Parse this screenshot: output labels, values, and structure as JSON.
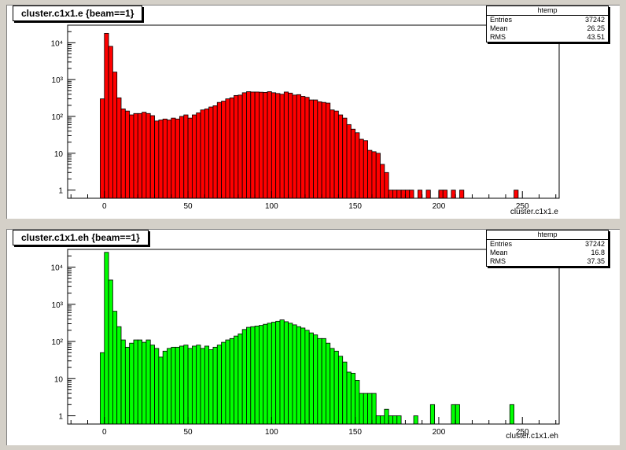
{
  "charts": [
    {
      "id": "e",
      "title": "cluster.c1x1.e {beam==1}",
      "stats": {
        "name": "htemp",
        "entries_label": "Entries",
        "entries": "37242",
        "mean_label": "Mean",
        "mean": "26.25",
        "rms_label": "RMS",
        "rms": "43.51"
      },
      "color": "#ff0000"
    },
    {
      "id": "eh",
      "title": "cluster.c1x1.eh {beam==1}",
      "stats": {
        "name": "htemp",
        "entries_label": "Entries",
        "entries": "37242",
        "mean_label": "Mean",
        "mean": "16.8",
        "rms_label": "RMS",
        "rms": "37.35"
      },
      "color": "#00ff00"
    }
  ],
  "chart_data": [
    {
      "type": "histogram",
      "title": "cluster.c1x1.e {beam==1}",
      "xlabel": "cluster.c1x1.e",
      "ylabel": "",
      "xlim": [
        -22,
        272
      ],
      "ylim": [
        0.6,
        30000
      ],
      "y_scale": "log",
      "bin_width": 2.5,
      "x_ticks": [
        0,
        50,
        100,
        150,
        200,
        250
      ],
      "y_ticks": [
        {
          "v": 1,
          "label": "1"
        },
        {
          "v": 10,
          "label": "10"
        },
        {
          "v": 100,
          "label": "10²"
        },
        {
          "v": 1000,
          "label": "10³"
        },
        {
          "v": 10000,
          "label": "10⁴"
        }
      ],
      "fill": "#ff0000",
      "bins": [
        [
          -2.5,
          300
        ],
        [
          0,
          18000
        ],
        [
          2.5,
          8000
        ],
        [
          5,
          1600
        ],
        [
          7.5,
          320
        ],
        [
          10,
          160
        ],
        [
          12.5,
          140
        ],
        [
          15,
          110
        ],
        [
          17.5,
          120
        ],
        [
          20,
          120
        ],
        [
          22.5,
          130
        ],
        [
          25,
          120
        ],
        [
          27.5,
          105
        ],
        [
          30,
          75
        ],
        [
          32.5,
          80
        ],
        [
          35,
          85
        ],
        [
          37.5,
          80
        ],
        [
          40,
          90
        ],
        [
          42.5,
          85
        ],
        [
          45,
          100
        ],
        [
          47.5,
          110
        ],
        [
          50,
          90
        ],
        [
          52.5,
          110
        ],
        [
          55,
          125
        ],
        [
          57.5,
          150
        ],
        [
          60,
          160
        ],
        [
          62.5,
          180
        ],
        [
          65,
          195
        ],
        [
          67.5,
          240
        ],
        [
          70,
          260
        ],
        [
          72.5,
          300
        ],
        [
          75,
          320
        ],
        [
          77.5,
          370
        ],
        [
          80,
          380
        ],
        [
          82.5,
          440
        ],
        [
          85,
          470
        ],
        [
          87.5,
          460
        ],
        [
          90,
          460
        ],
        [
          92.5,
          455
        ],
        [
          95,
          450
        ],
        [
          97.5,
          470
        ],
        [
          100,
          440
        ],
        [
          102.5,
          420
        ],
        [
          105,
          400
        ],
        [
          107.5,
          460
        ],
        [
          110,
          430
        ],
        [
          112.5,
          380
        ],
        [
          115,
          390
        ],
        [
          117.5,
          350
        ],
        [
          120,
          330
        ],
        [
          122.5,
          280
        ],
        [
          125,
          280
        ],
        [
          127.5,
          250
        ],
        [
          130,
          240
        ],
        [
          132.5,
          230
        ],
        [
          135,
          150
        ],
        [
          137.5,
          140
        ],
        [
          140,
          110
        ],
        [
          142.5,
          90
        ],
        [
          145,
          60
        ],
        [
          147.5,
          45
        ],
        [
          150,
          36
        ],
        [
          152.5,
          24
        ],
        [
          155,
          22
        ],
        [
          157.5,
          12
        ],
        [
          160,
          11
        ],
        [
          162.5,
          10
        ],
        [
          165,
          5
        ],
        [
          167.5,
          3
        ],
        [
          170,
          1
        ],
        [
          172.5,
          1
        ],
        [
          175,
          1
        ],
        [
          177.5,
          1
        ],
        [
          180,
          1
        ],
        [
          182.5,
          1
        ],
        [
          187.5,
          1
        ],
        [
          192.5,
          1
        ],
        [
          200,
          1
        ],
        [
          202.5,
          1
        ],
        [
          207.5,
          1
        ],
        [
          212.5,
          1
        ],
        [
          245,
          1
        ]
      ]
    },
    {
      "type": "histogram",
      "title": "cluster.c1x1.eh {beam==1}",
      "xlabel": "cluster.c1x1.eh",
      "ylabel": "",
      "xlim": [
        -22,
        272
      ],
      "ylim": [
        0.6,
        30000
      ],
      "y_scale": "log",
      "bin_width": 2.5,
      "x_ticks": [
        0,
        50,
        100,
        150,
        200,
        250
      ],
      "y_ticks": [
        {
          "v": 1,
          "label": "1"
        },
        {
          "v": 10,
          "label": "10"
        },
        {
          "v": 100,
          "label": "10²"
        },
        {
          "v": 1000,
          "label": "10³"
        },
        {
          "v": 10000,
          "label": "10⁴"
        }
      ],
      "fill": "#00ff00",
      "bins": [
        [
          -2.5,
          50
        ],
        [
          0,
          25000
        ],
        [
          2.5,
          4500
        ],
        [
          5,
          650
        ],
        [
          7.5,
          250
        ],
        [
          10,
          110
        ],
        [
          12.5,
          70
        ],
        [
          15,
          90
        ],
        [
          17.5,
          110
        ],
        [
          20,
          110
        ],
        [
          22.5,
          95
        ],
        [
          25,
          110
        ],
        [
          27.5,
          80
        ],
        [
          30,
          65
        ],
        [
          32.5,
          38
        ],
        [
          35,
          55
        ],
        [
          37.5,
          65
        ],
        [
          40,
          70
        ],
        [
          42.5,
          70
        ],
        [
          45,
          75
        ],
        [
          47.5,
          80
        ],
        [
          50,
          65
        ],
        [
          52.5,
          75
        ],
        [
          55,
          80
        ],
        [
          57.5,
          65
        ],
        [
          60,
          75
        ],
        [
          62.5,
          60
        ],
        [
          65,
          70
        ],
        [
          67.5,
          80
        ],
        [
          70,
          95
        ],
        [
          72.5,
          110
        ],
        [
          75,
          120
        ],
        [
          77.5,
          140
        ],
        [
          80,
          160
        ],
        [
          82.5,
          210
        ],
        [
          85,
          240
        ],
        [
          87.5,
          250
        ],
        [
          90,
          260
        ],
        [
          92.5,
          270
        ],
        [
          95,
          290
        ],
        [
          97.5,
          310
        ],
        [
          100,
          330
        ],
        [
          102.5,
          350
        ],
        [
          105,
          380
        ],
        [
          107.5,
          340
        ],
        [
          110,
          310
        ],
        [
          112.5,
          280
        ],
        [
          115,
          250
        ],
        [
          117.5,
          230
        ],
        [
          120,
          200
        ],
        [
          122.5,
          170
        ],
        [
          125,
          150
        ],
        [
          127.5,
          120
        ],
        [
          130,
          120
        ],
        [
          132.5,
          90
        ],
        [
          135,
          65
        ],
        [
          137.5,
          55
        ],
        [
          140,
          40
        ],
        [
          142.5,
          28
        ],
        [
          145,
          15
        ],
        [
          147.5,
          14
        ],
        [
          150,
          9
        ],
        [
          152.5,
          4
        ],
        [
          155,
          4
        ],
        [
          157.5,
          4
        ],
        [
          160,
          4
        ],
        [
          162.5,
          1
        ],
        [
          165,
          1
        ],
        [
          167.5,
          1.5
        ],
        [
          170,
          1
        ],
        [
          172.5,
          1
        ],
        [
          175,
          1
        ],
        [
          185,
          1
        ],
        [
          195,
          2
        ],
        [
          207.5,
          2
        ],
        [
          210,
          2
        ],
        [
          242.5,
          2
        ]
      ]
    }
  ]
}
